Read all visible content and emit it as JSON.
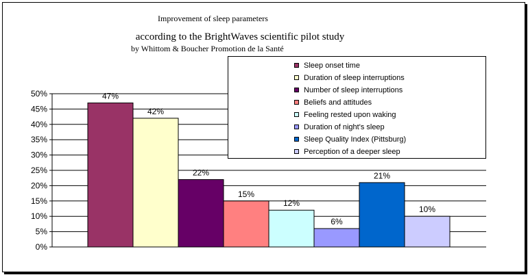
{
  "chart_data": {
    "type": "bar",
    "title": "Improvement of sleep parameters",
    "subtitle": "according to the BrightWaves scientific pilot study",
    "subtitle2": "by Whittom & Boucher Promotion de la Santé",
    "ylim": [
      0,
      50
    ],
    "y_tick_labels": [
      "0%",
      "5%",
      "10%",
      "15%",
      "20%",
      "25%",
      "30%",
      "35%",
      "40%",
      "45%",
      "50%"
    ],
    "grid": true,
    "legend_position": "top-right",
    "series": [
      {
        "name": "Sleep onset time",
        "value": 47,
        "label": "47%",
        "color": "#993366"
      },
      {
        "name": "Duration of sleep interruptions",
        "value": 42,
        "label": "42%",
        "color": "#FFFFCC"
      },
      {
        "name": "Number of sleep interruptions",
        "value": 22,
        "label": "22%",
        "color": "#660066"
      },
      {
        "name": "Beliefs and attitudes",
        "value": 15,
        "label": "15%",
        "color": "#FF8080"
      },
      {
        "name": "Feeling rested upon waking",
        "value": 12,
        "label": "12%",
        "color": "#CCFFFF"
      },
      {
        "name": "Duration of night's sleep",
        "value": 6,
        "label": "6%",
        "color": "#9999FF"
      },
      {
        "name": "Sleep Quality Index (Pittsburg)",
        "value": 21,
        "label": "21%",
        "color": "#0066CC"
      },
      {
        "name": "Perception of a deeper sleep",
        "value": 10,
        "label": "10%",
        "color": "#CCCCFF"
      }
    ]
  }
}
